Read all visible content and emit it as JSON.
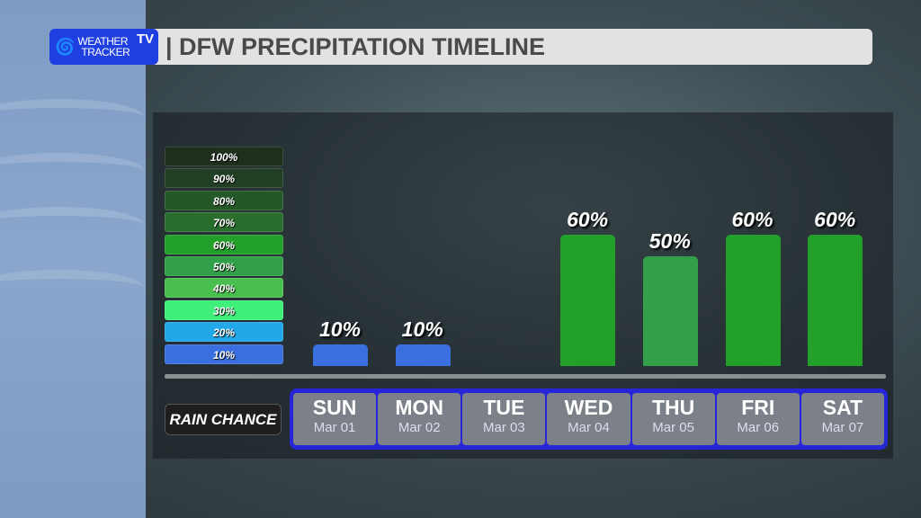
{
  "logo": {
    "line1": "WEATHER",
    "line2": "TRACKER",
    "tv": "TV"
  },
  "title": "| DFW PRECIPITATION TIMELINE",
  "legend": [
    {
      "label": "100%",
      "color": "#1e2f1e"
    },
    {
      "label": "90%",
      "color": "#213f24"
    },
    {
      "label": "80%",
      "color": "#255828"
    },
    {
      "label": "70%",
      "color": "#2a6e2e"
    },
    {
      "label": "60%",
      "color": "#22a02a"
    },
    {
      "label": "50%",
      "color": "#32a048"
    },
    {
      "label": "40%",
      "color": "#49c04e"
    },
    {
      "label": "30%",
      "color": "#3ef07a"
    },
    {
      "label": "20%",
      "color": "#22a8e8"
    },
    {
      "label": "10%",
      "color": "#3a6fe0"
    }
  ],
  "row_label": "RAIN CHANCE",
  "chart_data": {
    "type": "bar",
    "categories": [
      "SUN",
      "MON",
      "TUE",
      "WED",
      "THU",
      "FRI",
      "SAT"
    ],
    "dates": [
      "Mar 01",
      "Mar 02",
      "Mar 03",
      "Mar 04",
      "Mar 05",
      "Mar 06",
      "Mar 07"
    ],
    "values": [
      10,
      10,
      null,
      60,
      50,
      60,
      60
    ],
    "labels": [
      "10%",
      "10%",
      "",
      "60%",
      "50%",
      "60%",
      "60%"
    ],
    "ylim": [
      0,
      100
    ]
  }
}
